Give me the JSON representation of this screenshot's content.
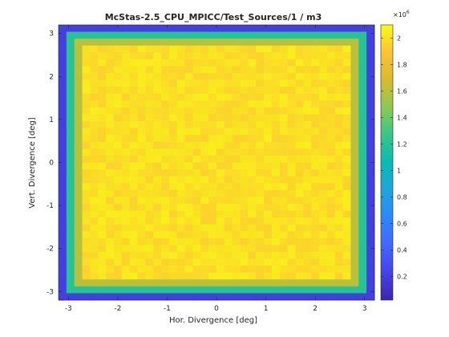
{
  "chart_data": {
    "type": "heatmap",
    "title": "McStas-2.5_CPU_MPICC/Test_Sources/1 / m3",
    "xlabel": "Hor. Divergence [deg]",
    "ylabel": "Vert. Divergence [deg]",
    "xlim": [
      -3.2,
      3.2
    ],
    "ylim": [
      -3.2,
      3.2
    ],
    "x_ticks": [
      -3,
      -2,
      -1,
      0,
      1,
      2,
      3
    ],
    "y_ticks": [
      -3,
      -2,
      -1,
      0,
      1,
      2,
      3
    ],
    "x_tick_labels": [
      "-3",
      "-2",
      "-1",
      "0",
      "1",
      "2",
      "3"
    ],
    "y_tick_labels": [
      "-3",
      "-2",
      "-1",
      "0",
      "1",
      "2",
      "3"
    ],
    "grid": false,
    "colormap": "parula",
    "colorbar": {
      "clim": [
        0.02,
        2.1
      ],
      "multiplier_label": "×10",
      "multiplier_exponent": "6",
      "ticks": [
        0.2,
        0.4,
        0.6,
        0.8,
        1.0,
        1.2,
        1.4,
        1.6,
        1.8,
        2.0
      ],
      "tick_labels": [
        "0.2",
        "0.4",
        "0.6",
        "0.8",
        "1",
        "1.2",
        "1.4",
        "1.6",
        "1.8",
        "2"
      ]
    },
    "grid_size": [
      40,
      40
    ],
    "value_units": "×10^6",
    "structure": {
      "outer_ring_value": 0.2,
      "second_ring_value": 1.2,
      "third_ring_value": 1.6,
      "plateau_mean": 2.0,
      "plateau_variation": 0.05
    }
  }
}
